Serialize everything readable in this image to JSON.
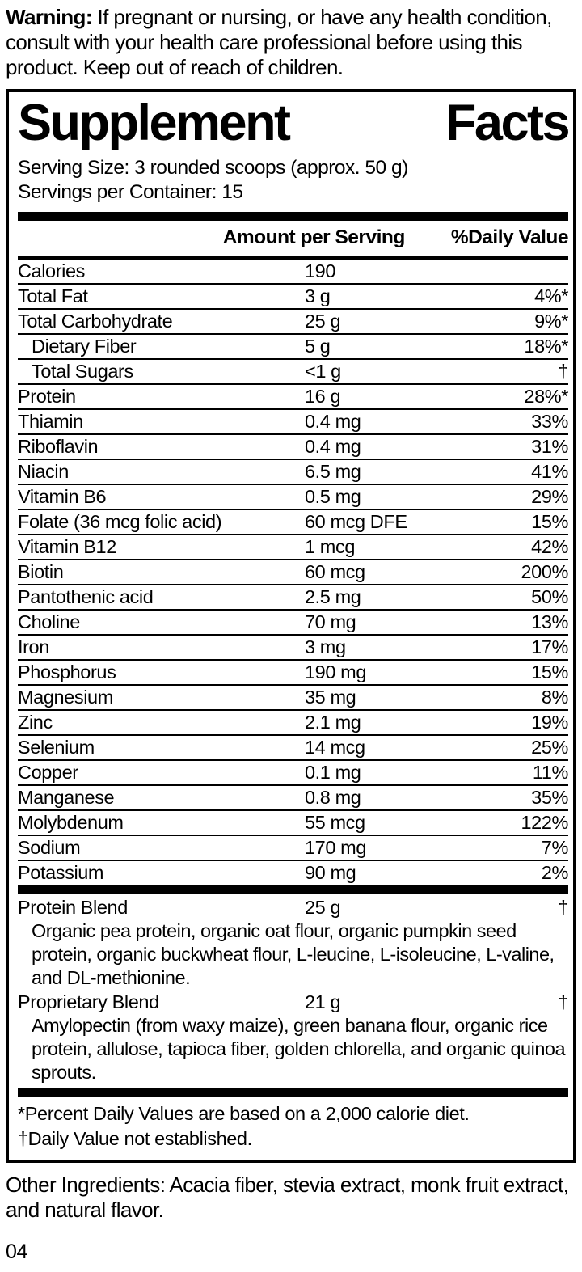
{
  "warning": {
    "label": "Warning:",
    "text": " If pregnant or nursing, or have any health condition, consult with your health care professional before using this product. Keep out of reach of children."
  },
  "panel": {
    "title": {
      "left": "Supplement",
      "right": "Facts"
    },
    "serving_size": "Serving Size: 3 rounded scoops (approx. 50 g)",
    "servings_per_container": "Servings per Container: 15",
    "columns": {
      "amount": "Amount per Serving",
      "dv": "%Daily Value"
    },
    "rows": [
      {
        "name": "Calories",
        "amount": "190",
        "dv": "",
        "indent": false
      },
      {
        "name": "Total Fat",
        "amount": "3 g",
        "dv": "4%*",
        "indent": false
      },
      {
        "name": "Total Carbohydrate",
        "amount": "25 g",
        "dv": "9%*",
        "indent": false
      },
      {
        "name": "Dietary Fiber",
        "amount": "5 g",
        "dv": "18%*",
        "indent": true
      },
      {
        "name": "Total Sugars",
        "amount": "<1 g",
        "dv": "†",
        "indent": true
      },
      {
        "name": "Protein",
        "amount": "16 g",
        "dv": "28%*",
        "indent": false
      },
      {
        "name": "Thiamin",
        "amount": "0.4 mg",
        "dv": "33%",
        "indent": false
      },
      {
        "name": "Riboflavin",
        "amount": "0.4 mg",
        "dv": "31%",
        "indent": false
      },
      {
        "name": "Niacin",
        "amount": "6.5 mg",
        "dv": "41%",
        "indent": false
      },
      {
        "name": "Vitamin B6",
        "amount": "0.5 mg",
        "dv": "29%",
        "indent": false
      },
      {
        "name": "Folate (36 mcg folic acid)",
        "amount": "60 mcg DFE",
        "dv": "15%",
        "indent": false
      },
      {
        "name": "Vitamin B12",
        "amount": "1 mcg",
        "dv": "42%",
        "indent": false
      },
      {
        "name": "Biotin",
        "amount": "60 mcg",
        "dv": "200%",
        "indent": false
      },
      {
        "name": "Pantothenic acid",
        "amount": "2.5 mg",
        "dv": "50%",
        "indent": false
      },
      {
        "name": "Choline",
        "amount": "70 mg",
        "dv": "13%",
        "indent": false
      },
      {
        "name": "Iron",
        "amount": "3 mg",
        "dv": "17%",
        "indent": false
      },
      {
        "name": "Phosphorus",
        "amount": "190 mg",
        "dv": "15%",
        "indent": false
      },
      {
        "name": "Magnesium",
        "amount": "35 mg",
        "dv": "8%",
        "indent": false
      },
      {
        "name": "Zinc",
        "amount": "2.1 mg",
        "dv": "19%",
        "indent": false
      },
      {
        "name": "Selenium",
        "amount": "14 mcg",
        "dv": "25%",
        "indent": false
      },
      {
        "name": "Copper",
        "amount": "0.1 mg",
        "dv": "11%",
        "indent": false
      },
      {
        "name": "Manganese",
        "amount": "0.8 mg",
        "dv": "35%",
        "indent": false
      },
      {
        "name": "Molybdenum",
        "amount": "55 mcg",
        "dv": "122%",
        "indent": false
      },
      {
        "name": "Sodium",
        "amount": "170 mg",
        "dv": "7%",
        "indent": false
      },
      {
        "name": "Potassium",
        "amount": "90 mg",
        "dv": "2%",
        "indent": false
      }
    ],
    "blends": [
      {
        "name": "Protein Blend",
        "amount": "25 g",
        "dv": "†",
        "description": "Organic pea protein, organic oat flour, organic pumpkin seed protein, organic buckwheat flour, L-leucine, L-isoleucine, L-valine, and DL-methionine."
      },
      {
        "name": "Proprietary Blend",
        "amount": "21 g",
        "dv": "†",
        "description": "Amylopectin (from waxy maize), green banana flour, organic rice protein, allulose, tapioca fiber, golden chlorella, and organic quinoa sprouts."
      }
    ],
    "footnotes": [
      "*Percent Daily Values are based on a 2,000 calorie diet.",
      "†Daily Value not established."
    ]
  },
  "other_ingredients": "Other Ingredients: Acacia fiber, stevia extract, monk fruit extract, and natural flavor.",
  "page_number": "04",
  "colors": {
    "ink": "#000000",
    "paper": "#ffffff"
  }
}
